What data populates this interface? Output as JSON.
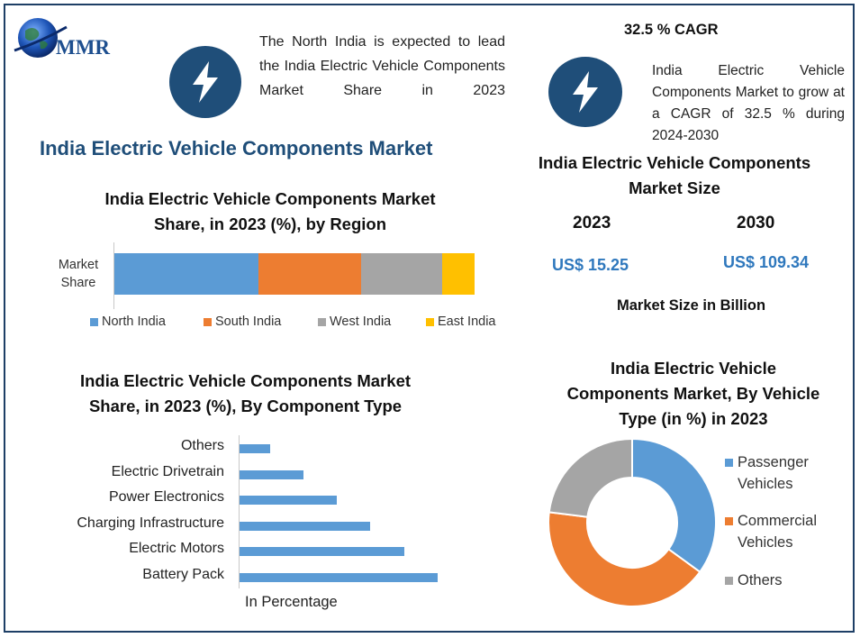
{
  "brand": {
    "logo_text": "MMR"
  },
  "header_note": {
    "text": "The North India is expected to lead the India Electric Vehicle Components Market Share in 2023"
  },
  "cagr": {
    "title": "32.5 % CAGR",
    "text": "India Electric Vehicle Components Market to grow at a CAGR of 32.5 % during 2024-2030"
  },
  "main_title": "India Electric Vehicle Components Market",
  "market_size": {
    "title": "India Electric Vehicle Components Market Size",
    "year1": "2023",
    "value1": "US$ 15.25",
    "year2": "2030",
    "value2": "US$ 109.34",
    "unit_label": "Market Size in Billion"
  },
  "colors": {
    "blue": "#5b9bd5",
    "orange": "#ed7d31",
    "gray": "#a5a5a5",
    "yellow": "#ffc000",
    "navy": "#1f4e79"
  },
  "chart_data": [
    {
      "type": "bar",
      "orientation": "horizontal-stacked",
      "title": "India Electric Vehicle Components Market Share, in 2023 (%), by Region",
      "categories": [
        "Market Share"
      ],
      "series": [
        {
          "name": "North India",
          "values": [
            40
          ]
        },
        {
          "name": "South India",
          "values": [
            28.5
          ]
        },
        {
          "name": "West India",
          "values": [
            22.5
          ]
        },
        {
          "name": "East India",
          "values": [
            9
          ]
        }
      ],
      "legend": "bottom",
      "xlim": [
        0,
        100
      ]
    },
    {
      "type": "bar",
      "orientation": "horizontal",
      "title": "India Electric Vehicle Components Market Share, in 2023 (%), By Component Type",
      "categories": [
        "Others",
        "Electric Drivetrain",
        "Power Electronics",
        "Charging Infrastructure",
        "Electric Motors",
        "Battery Pack"
      ],
      "values": [
        9,
        19,
        29,
        39,
        49,
        59
      ],
      "xlabel": "In Percentage",
      "xlim": [
        0,
        60
      ]
    },
    {
      "type": "pie",
      "donut": true,
      "title": "India Electric Vehicle Components Market, By Vehicle Type (in %) in 2023",
      "categories": [
        "Passenger Vehicles",
        "Commercial Vehicles",
        "Others"
      ],
      "values": [
        35,
        42,
        23
      ],
      "legend": "right"
    }
  ]
}
